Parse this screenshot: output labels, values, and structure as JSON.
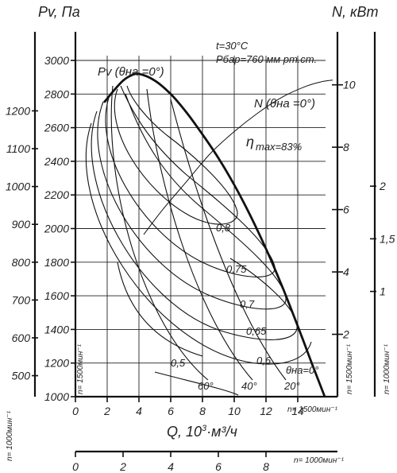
{
  "chart_data": {
    "type": "line",
    "y_left_title": "Pv, Па",
    "y_right_title": "N, кВт",
    "x_title": "Q, 10",
    "x_title_exp": "3",
    "x_title_unit": "·м³/ч",
    "conditions": [
      "t=30°C",
      "Pбар=760 мм рт.ст."
    ],
    "pv_label": "Pv (θна =0°)",
    "n_label": "N (θна =0°)",
    "eta_label": "η",
    "eta_sub": "max=83%",
    "rpm_1500": "n= 1500мин⁻¹",
    "rpm_1000": "n= 1000мин⁻¹",
    "y_left_1500": {
      "ticks": [
        1000,
        1200,
        1400,
        1600,
        1800,
        2000,
        2200,
        2400,
        2600,
        2800,
        3000
      ],
      "labels": [
        "1000",
        "1200",
        "1400",
        "1600",
        "1800",
        "2000",
        "2200",
        "2400",
        "2600",
        "2800",
        "3000"
      ],
      "ylim": [
        1000,
        3000
      ]
    },
    "y_left_1000": {
      "labels": [
        "500",
        "600",
        "700",
        "800",
        "900",
        "1000",
        "1100",
        "1200"
      ],
      "values": [
        500,
        600,
        700,
        800,
        900,
        1000,
        1100,
        1200
      ]
    },
    "x_1500": {
      "ticks": [
        0,
        2,
        4,
        6,
        8,
        10,
        12,
        14
      ],
      "labels": [
        "0",
        "2",
        "4",
        "6",
        "8",
        "10",
        "12",
        "14"
      ],
      "xlim": [
        0,
        16.5
      ]
    },
    "x_1000": {
      "labels": [
        "0",
        "2",
        "4",
        "6",
        "8"
      ],
      "values": [
        0,
        2,
        4,
        6,
        8
      ]
    },
    "y_right_1500": {
      "labels": [
        "2",
        "4",
        "6",
        "8",
        "10"
      ],
      "values": [
        2,
        4,
        6,
        8,
        10
      ],
      "ylim": [
        0,
        11.7
      ]
    },
    "y_right_1000": {
      "labels": [
        "1",
        "1,5",
        "2"
      ],
      "values": [
        1,
        1.5,
        2
      ]
    },
    "series": [
      {
        "name": "Pv (θна =0°)",
        "x": [
          1.8,
          2.5,
          3.0,
          3.5,
          4.0,
          5.0,
          6.0,
          7.0,
          8.0,
          9.0,
          10.0,
          11.0,
          12.0,
          13.0,
          14.0,
          15.0,
          15.7
        ],
        "y": [
          2750,
          2830,
          2880,
          2910,
          2920,
          2880,
          2800,
          2690,
          2560,
          2420,
          2260,
          2080,
          1880,
          1660,
          1420,
          1170,
          1000
        ]
      },
      {
        "name": "N (θна =0°)",
        "x": [
          4.3,
          5.5,
          7.0,
          8.5,
          10.0,
          11.5,
          13.0,
          14.5,
          15.5,
          16.2
        ],
        "y_kw": [
          5.2,
          6.0,
          6.9,
          7.8,
          8.5,
          9.1,
          9.6,
          9.95,
          10.1,
          10.15
        ]
      }
    ],
    "guide_angles": [
      "60°",
      "40°",
      "20°",
      "θна=0°"
    ],
    "efficiency_labels": [
      "0,8",
      "0,75",
      "0,7",
      "0,65",
      "0,6",
      "0,5"
    ]
  }
}
